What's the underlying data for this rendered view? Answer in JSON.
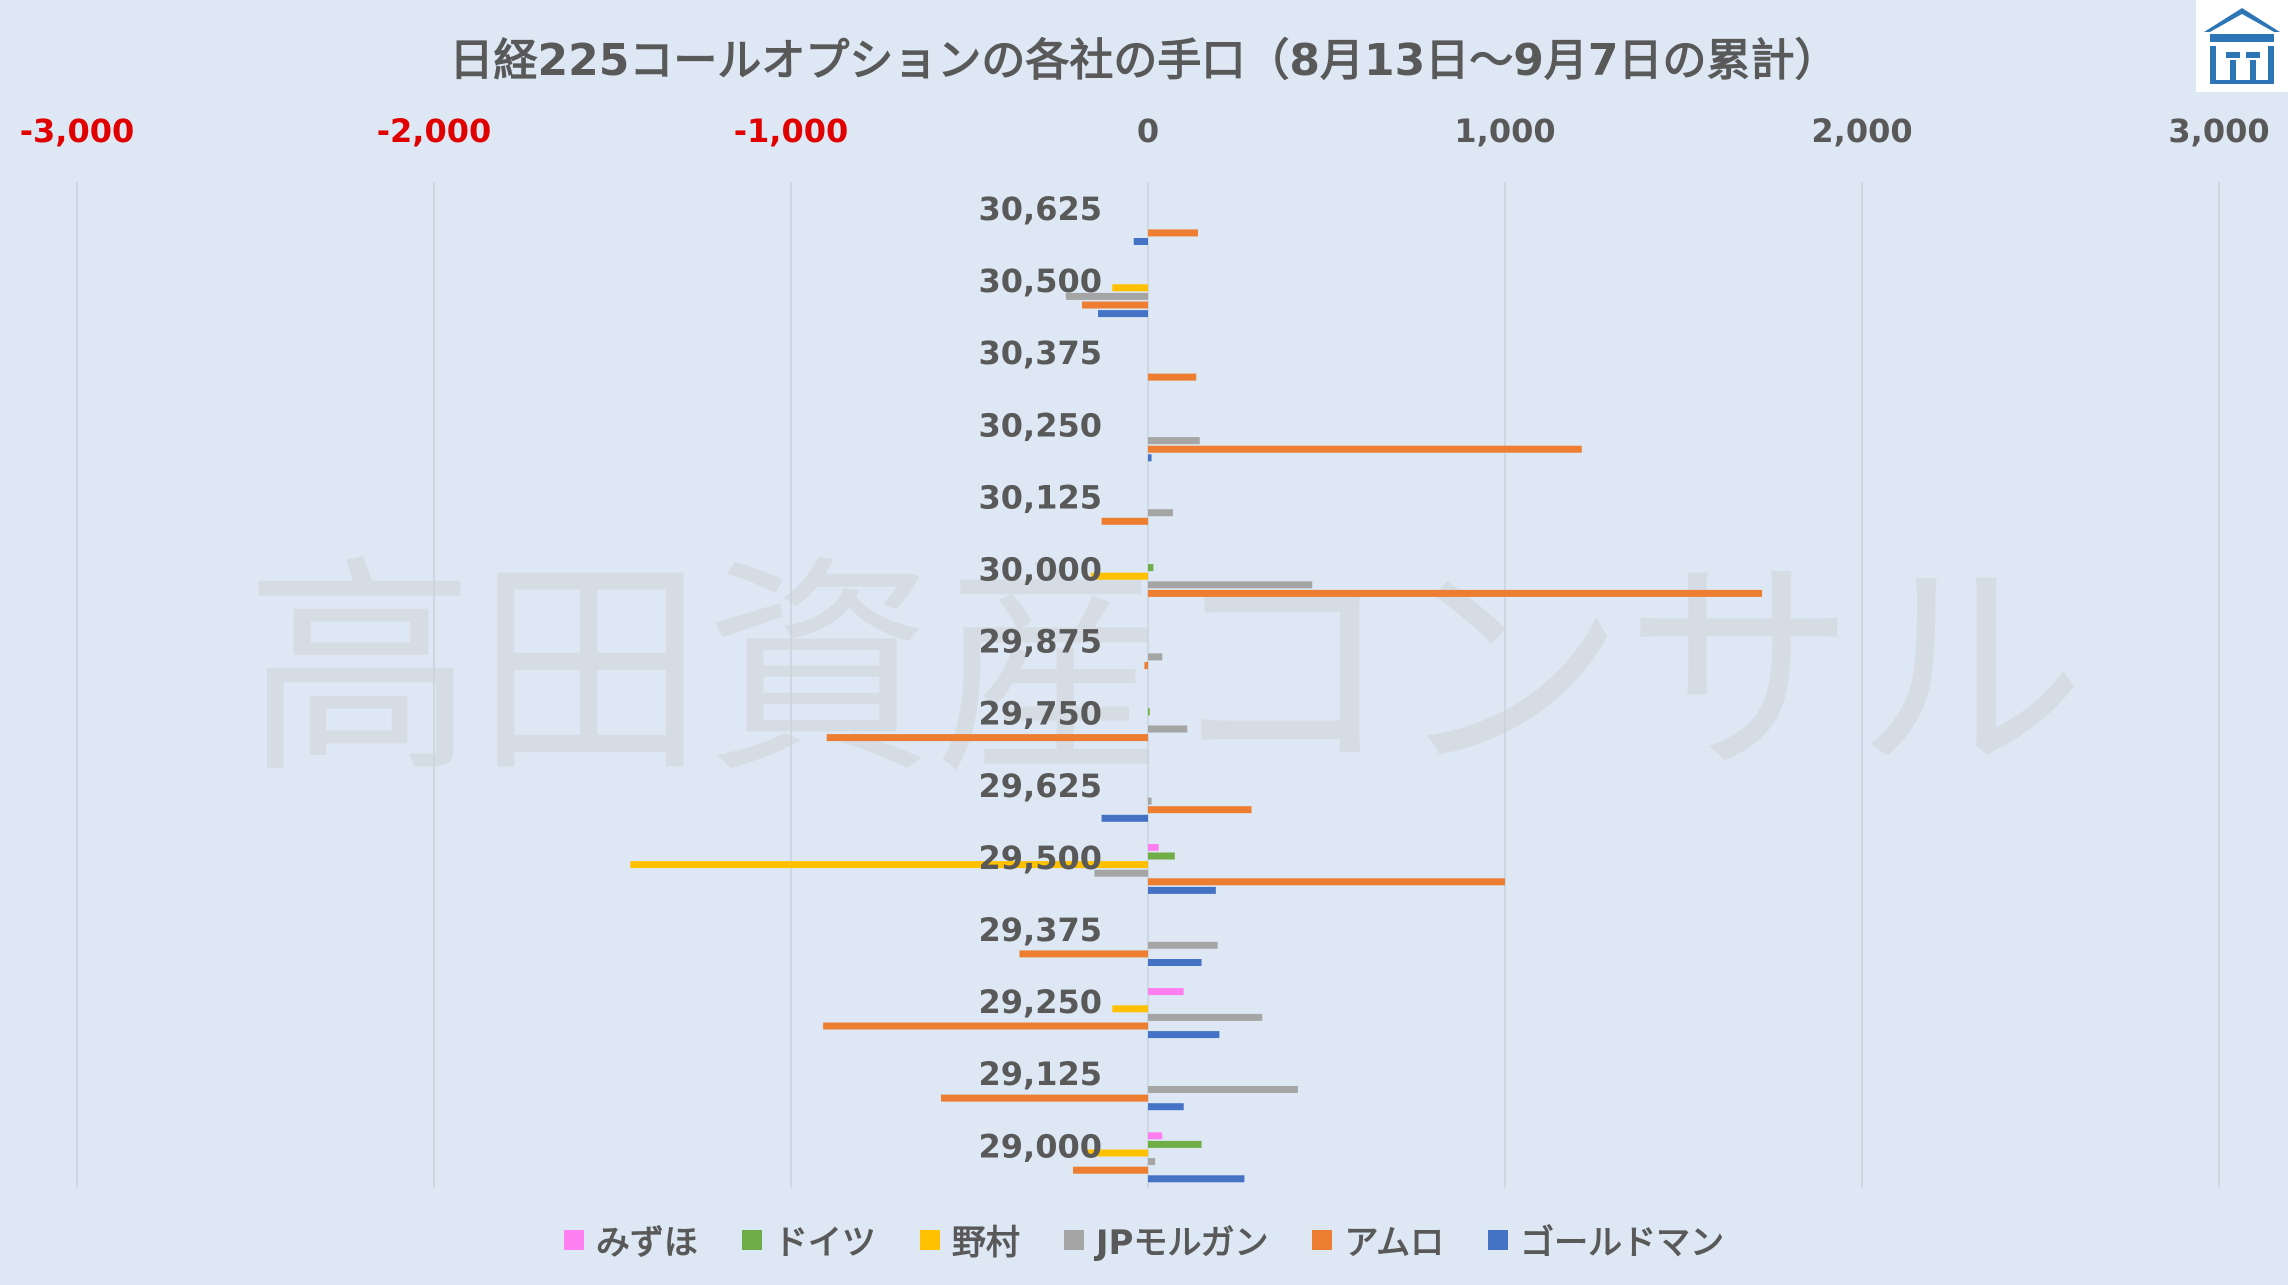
{
  "title": "日経225コールオプションの各社の手口（8月13日〜9月7日の累計）",
  "watermark": "高田資産コンサル",
  "colors": {
    "background": "#dde8f4",
    "negative_tick": "#e00000",
    "tick": "#595959",
    "grid": "#c8d2dc",
    "logo": "#2e75b6"
  },
  "chart_data": {
    "type": "bar",
    "orientation": "horizontal",
    "title": "日経225コールオプションの各社の手口（8月13日〜9月7日の累計）",
    "xlim": [
      -3000,
      3000
    ],
    "x_ticks": [
      "-3,000",
      "-2,000",
      "-1,000",
      "0",
      "1,000",
      "2,000",
      "3,000"
    ],
    "x_tick_values": [
      -3000,
      -2000,
      -1000,
      0,
      1000,
      2000,
      3000
    ],
    "axis_position": "top",
    "grid": true,
    "legend_position": "bottom",
    "categories": [
      "30,625",
      "30,500",
      "30,375",
      "30,250",
      "30,125",
      "30,000",
      "29,875",
      "29,750",
      "29,625",
      "29,500",
      "29,375",
      "29,250",
      "29,125",
      "29,000"
    ],
    "series": [
      {
        "name": "みずほ",
        "color": "#ff7ff0",
        "values": [
          0,
          0,
          0,
          0,
          0,
          0,
          0,
          0,
          0,
          30,
          0,
          100,
          0,
          40
        ]
      },
      {
        "name": "ドイツ",
        "color": "#70ad47",
        "values": [
          0,
          0,
          0,
          0,
          0,
          15,
          0,
          5,
          0,
          75,
          0,
          0,
          0,
          150
        ]
      },
      {
        "name": "野村",
        "color": "#ffc000",
        "values": [
          0,
          -100,
          0,
          0,
          0,
          -160,
          0,
          0,
          0,
          -1450,
          0,
          -100,
          0,
          -170
        ]
      },
      {
        "name": "JPモルガン",
        "color": "#a5a5a5",
        "values": [
          0,
          -230,
          0,
          145,
          70,
          460,
          40,
          110,
          10,
          -150,
          195,
          320,
          420,
          20
        ]
      },
      {
        "name": "アムロ",
        "color": "#ed7d31",
        "values": [
          140,
          -185,
          135,
          1215,
          -130,
          1720,
          -10,
          -900,
          290,
          1000,
          -360,
          -910,
          -580,
          -210
        ]
      },
      {
        "name": "ゴールドマン",
        "color": "#4472c4",
        "values": [
          -40,
          -140,
          0,
          10,
          0,
          0,
          0,
          0,
          -130,
          190,
          150,
          200,
          100,
          270
        ]
      }
    ]
  }
}
